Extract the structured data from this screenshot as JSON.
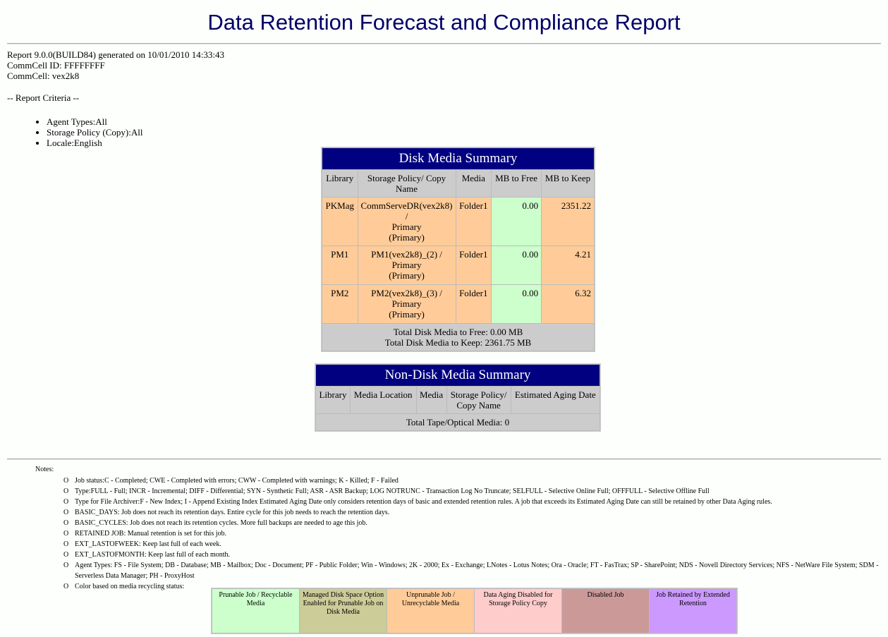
{
  "title": "Data Retention Forecast and Compliance Report",
  "info": {
    "report_line": "Report 9.0.0(BUILD84) generated on 10/01/2010 14:33:43",
    "commcell_id": "CommCell ID: FFFFFFFF",
    "commcell": "CommCell: vex2k8"
  },
  "criteria_heading": "-- Report Criteria --",
  "criteria": [
    "Agent Types:All",
    "Storage Policy (Copy):All",
    "Locale:English"
  ],
  "disk_summary": {
    "title": "Disk Media Summary",
    "headers": [
      "Library",
      "Storage Policy/ Copy Name",
      "Media",
      "MB to Free",
      "MB to Keep"
    ],
    "rows": [
      {
        "library": "PKMag",
        "policy": "CommServeDR(vex2k8) /",
        "copy": "Primary",
        "copy2": "(Primary)",
        "media": "Folder1",
        "free": "0.00",
        "keep": "2351.22"
      },
      {
        "library": "PM1",
        "policy": "PM1(vex2k8)_(2) /",
        "copy": "Primary",
        "copy2": "(Primary)",
        "media": "Folder1",
        "free": "0.00",
        "keep": "4.21"
      },
      {
        "library": "PM2",
        "policy": "PM2(vex2k8)_(3) /",
        "copy": "Primary",
        "copy2": "(Primary)",
        "media": "Folder1",
        "free": "0.00",
        "keep": "6.32"
      }
    ],
    "total_free": "Total Disk Media to Free: 0.00 MB",
    "total_keep": "Total Disk Media to Keep: 2361.75 MB"
  },
  "nondisk_summary": {
    "title": "Non-Disk Media Summary",
    "headers": [
      "Library",
      "Media Location",
      "Media",
      "Storage Policy/ Copy Name",
      "Estimated Aging Date"
    ],
    "total": "Total Tape/Optical Media: 0"
  },
  "notes_label": "Notes:",
  "notes": [
    "Job status:C - Completed; CWE - Completed with errors; CWW - Completed with warnings; K - Killed; F - Failed",
    "Type:FULL - Full; INCR - Incremental; DIFF - Differential; SYN - Synthetic Full; ASR - ASR Backup; LOG NOTRUNC - Transaction Log No Truncate; SELFULL - Selective Online Full; OFFFULL - Selective Offline Full",
    "Type for File Archiver:F - New Index; I - Append Existing Index Estimated Aging Date only considers retention days of basic and extended retention rules. A job that exceeds its Estimated Aging Date can still be retained by other Data Aging rules.",
    "BASIC_DAYS: Job does not reach its retention days. Entire cycle for this job needs to reach the retention days.",
    "BASIC_CYCLES: Job does not reach its retention cycles. More full backups are needed to age this job.",
    "RETAINED JOB: Manual retention is set for this job.",
    "EXT_LASTOFWEEK: Keep last full of each week.",
    "EXT_LASTOFMONTH: Keep last full of each month.",
    "Agent Types: FS - File System; DB - Database; MB - Mailbox; Doc - Document; PF - Public Folder; Win - Windows; 2K - 2000; Ex - Exchange; LNotes - Lotus Notes; Ora - Oracle; FT - FasTrax; SP - SharePoint; NDS - Novell Directory Services; NFS - NetWare File System; SDM - Serverless Data Manager; PH - ProxyHost",
    "Color based on media recycling status:"
  ],
  "bullet_glyph": "O",
  "legend": [
    {
      "label": "Prunable Job / Recyclable Media",
      "color": "#ccffcc"
    },
    {
      "label": "Managed Disk Space Option Enabled for Prunable Job on Disk Media",
      "color": "#cccc99"
    },
    {
      "label": "Unprunable Job / Unrecyclable Media",
      "color": "#ffcc99"
    },
    {
      "label": "Data Aging Disabled for Storage Policy Copy",
      "color": "#ffcccc"
    },
    {
      "label": "Disabled Job",
      "color": "#cc9999"
    },
    {
      "label": "Job Retained by Extended Retention",
      "color": "#cc99ff"
    }
  ]
}
